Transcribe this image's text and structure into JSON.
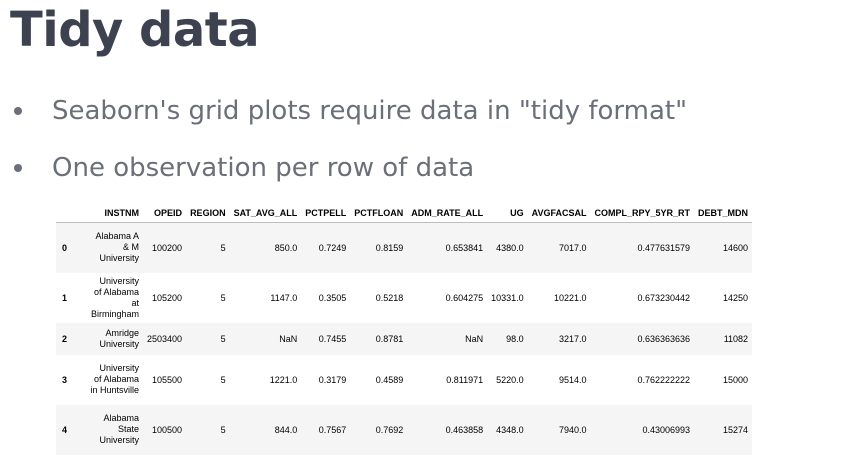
{
  "slide": {
    "title": "Tidy data",
    "bullets": [
      "Seaborn's grid plots require data in \"tidy format\"",
      "One observation per row of data"
    ]
  },
  "table": {
    "columns": [
      "",
      "INSTNM",
      "OPEID",
      "REGION",
      "SAT_AVG_ALL",
      "PCTPELL",
      "PCTFLOAN",
      "ADM_RATE_ALL",
      "UG",
      "AVGFACSAL",
      "COMPL_RPY_5YR_RT",
      "DEBT_MDN"
    ],
    "rows": [
      {
        "idx": "0",
        "instnm": [
          "Alabama A",
          "& M",
          "University"
        ],
        "cells": [
          "100200",
          "5",
          "850.0",
          "0.7249",
          "0.8159",
          "0.653841",
          "4380.0",
          "7017.0",
          "0.477631579",
          "14600"
        ]
      },
      {
        "idx": "1",
        "instnm": [
          "University",
          "of Alabama",
          "at",
          "Birmingham"
        ],
        "cells": [
          "105200",
          "5",
          "1147.0",
          "0.3505",
          "0.5218",
          "0.604275",
          "10331.0",
          "10221.0",
          "0.673230442",
          "14250"
        ]
      },
      {
        "idx": "2",
        "instnm": [
          "Amridge",
          "University"
        ],
        "cells": [
          "2503400",
          "5",
          "NaN",
          "0.7455",
          "0.8781",
          "NaN",
          "98.0",
          "3217.0",
          "0.636363636",
          "11082"
        ]
      },
      {
        "idx": "3",
        "instnm": [
          "University",
          "of Alabama",
          "in Huntsville"
        ],
        "cells": [
          "105500",
          "5",
          "1221.0",
          "0.3179",
          "0.4589",
          "0.811971",
          "5220.0",
          "9514.0",
          "0.762222222",
          "15000"
        ]
      },
      {
        "idx": "4",
        "instnm": [
          "Alabama",
          "State",
          "University"
        ],
        "cells": [
          "100500",
          "5",
          "844.0",
          "0.7567",
          "0.7692",
          "0.463858",
          "4348.0",
          "7940.0",
          "0.43006993",
          "15274"
        ]
      }
    ]
  }
}
